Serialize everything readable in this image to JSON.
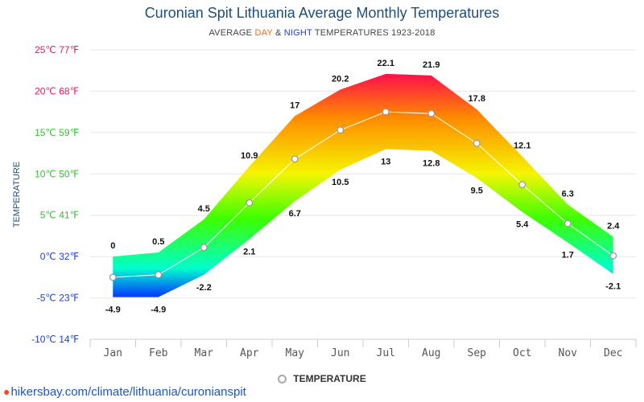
{
  "title": "Curonian Spit Lithuania Average Monthly Temperatures",
  "subtitle": {
    "prefix": "AVERAGE ",
    "day": "DAY",
    "amp": " & ",
    "night": "NIGHT",
    "suffix": " TEMPERATURES 1923-2018"
  },
  "legend": {
    "label": "TEMPERATURE"
  },
  "footer": {
    "url": "hikersbay.com/climate/lithuania/curonianspit"
  },
  "chart_data": {
    "type": "area",
    "title": "Curonian Spit Lithuania Average Monthly Temperatures",
    "ylabel": "TEMPERATURE",
    "ylim": [
      -10,
      25
    ],
    "grid": true,
    "legend_placement": "bottom-center",
    "categories": [
      "Jan",
      "Feb",
      "Mar",
      "Apr",
      "May",
      "Jun",
      "Jul",
      "Aug",
      "Sep",
      "Oct",
      "Nov",
      "Dec"
    ],
    "y_ticks": [
      {
        "value": 25,
        "label": "25℃ 77℉",
        "color": "#e6195a"
      },
      {
        "value": 20,
        "label": "20℃ 68℉",
        "color": "#e6195a"
      },
      {
        "value": 15,
        "label": "15℃ 59℉",
        "color": "#3ab93a"
      },
      {
        "value": 10,
        "label": "10℃ 50℉",
        "color": "#3ab93a"
      },
      {
        "value": 5,
        "label": "5℃ 41℉",
        "color": "#3ab93a"
      },
      {
        "value": 0,
        "label": "0℃ 32℉",
        "color": "#1a3fd6"
      },
      {
        "value": -5,
        "label": "-5℃ 23℉",
        "color": "#1a3fd6"
      },
      {
        "value": -10,
        "label": "-10℃ 14℉",
        "color": "#1a3fd6"
      }
    ],
    "series": [
      {
        "name": "DAY",
        "values": [
          0,
          0.5,
          4.5,
          10.9,
          17,
          20.2,
          22.1,
          21.9,
          17.8,
          12.1,
          6.3,
          2.4
        ]
      },
      {
        "name": "NIGHT",
        "values": [
          -4.9,
          -4.9,
          -2.2,
          2.1,
          6.7,
          10.5,
          13,
          12.8,
          9.5,
          5.4,
          1.7,
          -2.1
        ]
      },
      {
        "name": "TEMPERATURE",
        "values": [
          -2.5,
          -2.2,
          1.1,
          6.5,
          11.8,
          15.3,
          17.5,
          17.3,
          13.7,
          8.7,
          4.0,
          0.1
        ]
      }
    ],
    "day_labels": [
      "0",
      "0.5",
      "4.5",
      "10.9",
      "17",
      "20.2",
      "22.1",
      "21.9",
      "17.8",
      "12.1",
      "6.3",
      "2.4"
    ],
    "night_labels": [
      "-4.9",
      "-4.9",
      "-2.2",
      "2.1",
      "6.7",
      "10.5",
      "13",
      "12.8",
      "9.5",
      "5.4",
      "1.7",
      "-2.1"
    ],
    "colors": {
      "hot": "#ff0a4f",
      "warm": "#ff8a00",
      "mild": "#f5f500",
      "cool": "#3cff00",
      "cold": "#00ffcc",
      "freezing": "#0033ff",
      "line": "#ffffff",
      "grid": "#e6e6e6"
    }
  }
}
